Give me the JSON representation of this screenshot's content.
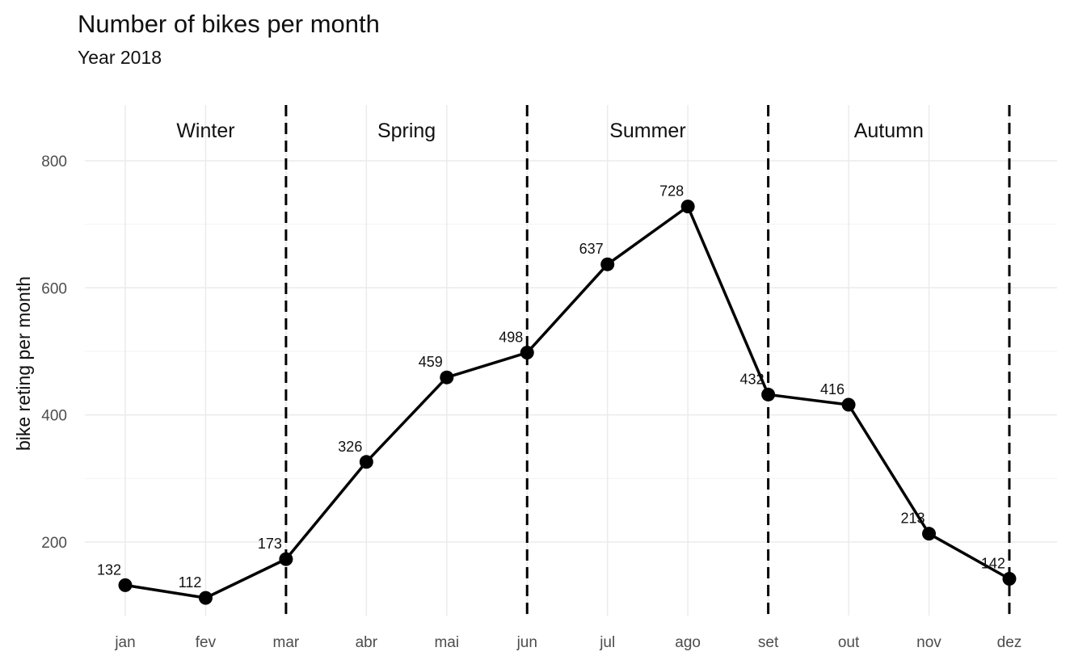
{
  "chart_data": {
    "type": "line",
    "title": "Number of bikes per month",
    "subtitle": "Year 2018",
    "xlabel": "",
    "ylabel": "bike reting per month",
    "categories": [
      "jan",
      "fev",
      "mar",
      "abr",
      "mai",
      "jun",
      "jul",
      "ago",
      "set",
      "out",
      "nov",
      "dez"
    ],
    "values": [
      132,
      112,
      173,
      326,
      459,
      498,
      637,
      728,
      432,
      416,
      213,
      142
    ],
    "data_labels": [
      "132",
      "112",
      "173",
      "326",
      "459",
      "498",
      "637",
      "728",
      "432",
      "416",
      "213",
      "142"
    ],
    "yticks": [
      200,
      400,
      600,
      800
    ],
    "ylim": [
      88,
      890
    ],
    "grid": true,
    "legend": "none",
    "line_color": "#000000",
    "season_boundaries": [
      "mar",
      "jun",
      "set",
      "dez"
    ],
    "seasons": [
      {
        "label": "Winter",
        "from": "jan",
        "to": "mar"
      },
      {
        "label": "Spring",
        "from": "mar",
        "to": "jun"
      },
      {
        "label": "Summer",
        "from": "jun",
        "to": "set"
      },
      {
        "label": "Autumn",
        "from": "set",
        "to": "dez"
      }
    ]
  }
}
